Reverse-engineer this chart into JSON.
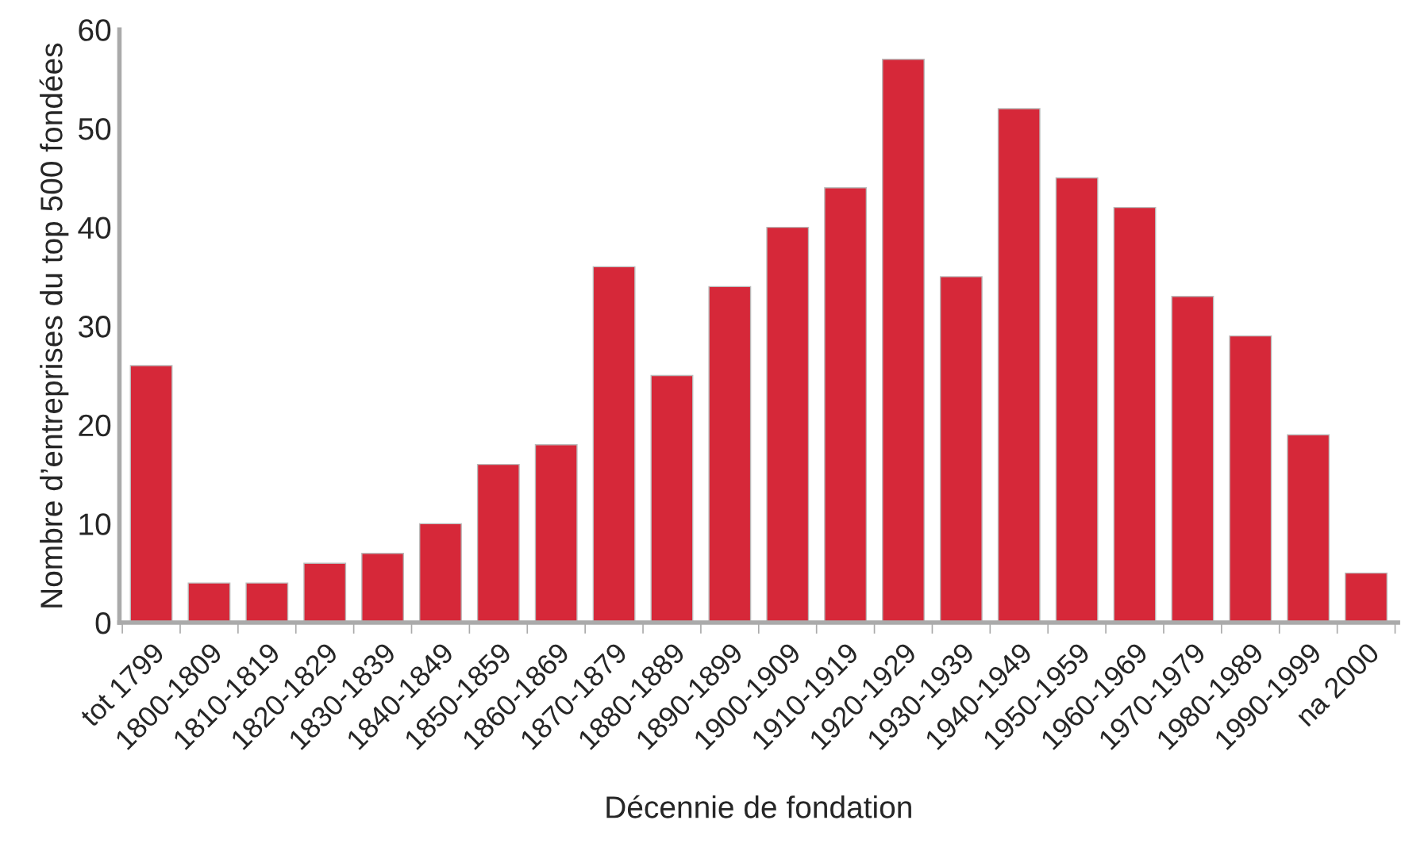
{
  "chart_data": {
    "type": "bar",
    "xlabel": "Décennie de fondation",
    "ylabel": "Nombre d’entreprises du top 500 fondées",
    "categories": [
      "tot 1799",
      "1800-1809",
      "1810-1819",
      "1820-1829",
      "1830-1839",
      "1840-1849",
      "1850-1859",
      "1860-1869",
      "1870-1879",
      "1880-1889",
      "1890-1899",
      "1900-1909",
      "1910-1919",
      "1920-1929",
      "1930-1939",
      "1940-1949",
      "1950-1959",
      "1960-1969",
      "1970-1979",
      "1980-1989",
      "1990-1999",
      "na 2000"
    ],
    "values": [
      26,
      4,
      4,
      6,
      7,
      10,
      16,
      18,
      36,
      25,
      34,
      40,
      44,
      57,
      35,
      52,
      45,
      42,
      33,
      29,
      19,
      5
    ],
    "color": "#d62839",
    "ylim": [
      0,
      60
    ],
    "yticks": [
      0,
      10,
      20,
      30,
      40,
      50,
      60
    ],
    "grid": false
  }
}
